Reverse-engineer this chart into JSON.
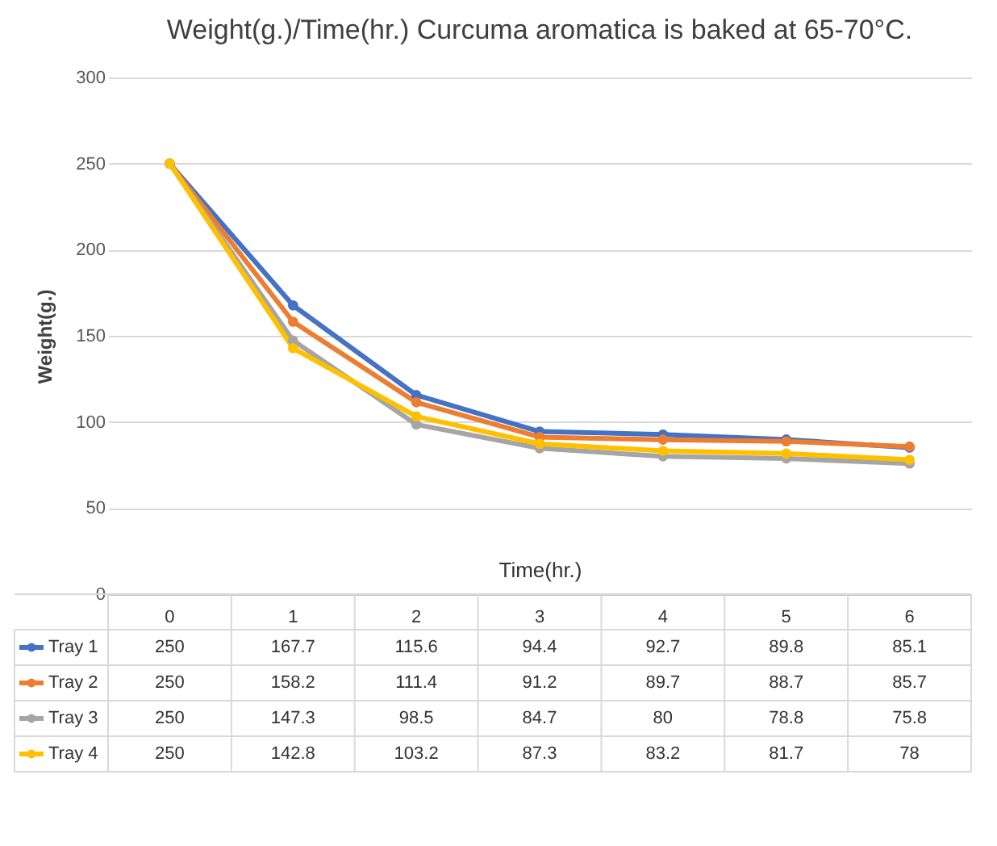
{
  "chart_data": {
    "type": "line",
    "title": "Weight(g.)/Time(hr.) Curcuma aromatica is baked at 65-70°C.",
    "xlabel": "Time(hr.)",
    "ylabel": "Weight(g.)",
    "categories": [
      "0",
      "1",
      "2",
      "3",
      "4",
      "5",
      "6"
    ],
    "series": [
      {
        "name": "Tray 1",
        "color": "#4472c4",
        "values": [
          250,
          167.7,
          115.6,
          94.4,
          92.7,
          89.8,
          85.1
        ]
      },
      {
        "name": "Tray 2",
        "color": "#ed7d31",
        "values": [
          250,
          158.2,
          111.4,
          91.2,
          89.7,
          88.7,
          85.7
        ]
      },
      {
        "name": "Tray 3",
        "color": "#a5a5a5",
        "values": [
          250,
          147.3,
          98.5,
          84.7,
          80,
          78.8,
          75.8
        ]
      },
      {
        "name": "Tray 4",
        "color": "#ffc000",
        "values": [
          250,
          142.8,
          103.2,
          87.3,
          83.2,
          81.7,
          78
        ]
      }
    ],
    "ylim": [
      0,
      300
    ],
    "yticks": [
      0,
      50,
      100,
      150,
      200,
      250,
      300
    ],
    "grid": "y",
    "legend": "bottom left",
    "marker": "circle",
    "line_style": "solid",
    "data_labels": true
  }
}
